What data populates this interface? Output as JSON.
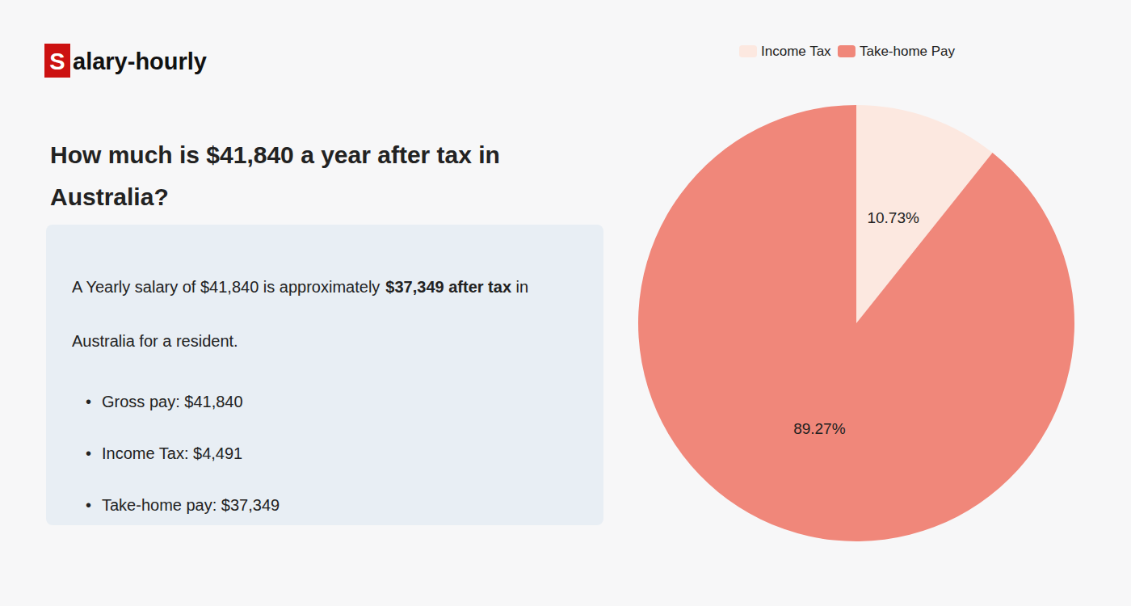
{
  "chart_data": {
    "type": "pie",
    "title": "How much is $41,840 a year after tax in\nAustralia?",
    "categories": [
      "Income Tax",
      "Take-home Pay"
    ],
    "values": [
      10.73,
      89.27
    ],
    "value_labels": [
      "10.73%",
      "89.27%"
    ],
    "colors": [
      "#fce8e0",
      "#f0877a"
    ],
    "data_labels": true,
    "legend": "top",
    "annotations": [
      [
        {
          "text": "S",
          "color": "#cc1111"
        },
        {
          "text": "alary-hourly"
        }
      ],
      [
        {
          "text": "A Yearly salary of $41,840 is approximately "
        },
        {
          "text": "$37,349 after tax",
          "color": "#cc1111"
        },
        {
          "text": " in"
        }
      ],
      [
        {
          "text": "Australia for a resident."
        }
      ],
      [
        {
          "text": "•"
        },
        {
          "text": "Gross pay: $41,840"
        }
      ],
      [
        {
          "text": "•"
        },
        {
          "text": "Income Tax: $4,491"
        }
      ],
      [
        {
          "text": "•"
        },
        {
          "text": "Take-home pay: $37,349"
        }
      ]
    ]
  }
}
